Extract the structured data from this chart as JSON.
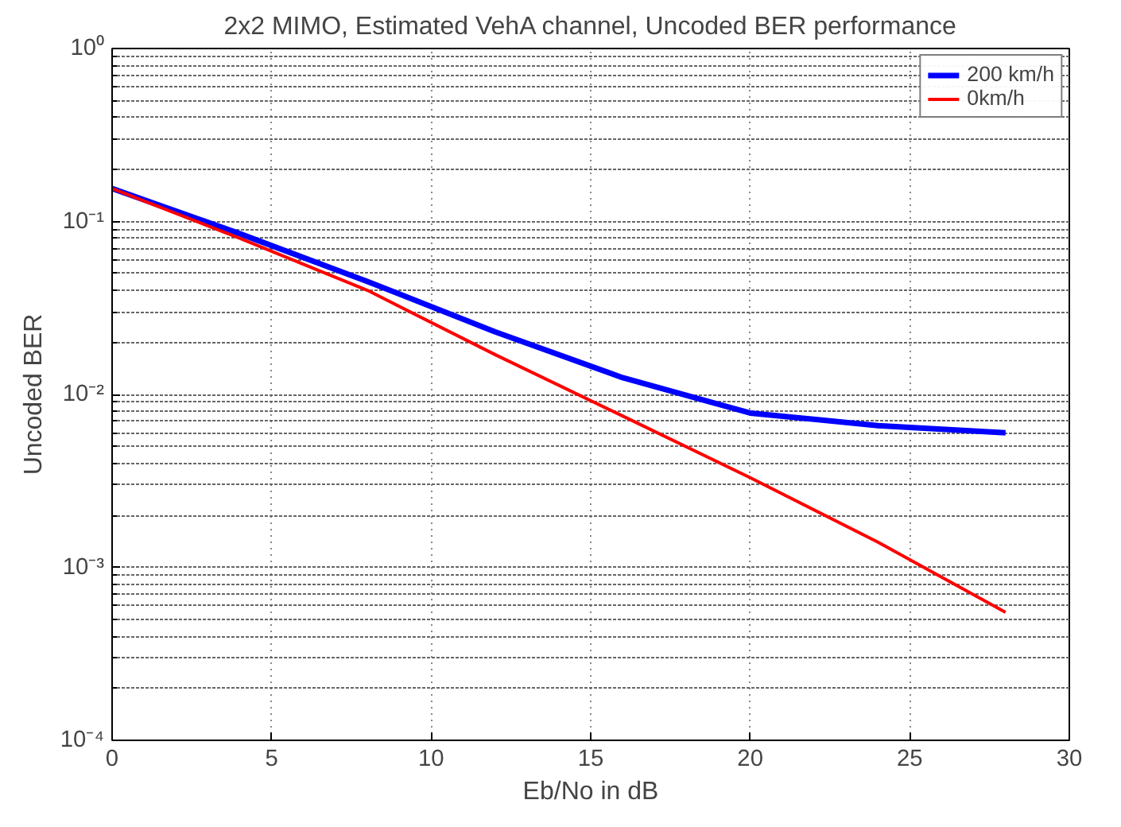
{
  "chart_data": {
    "type": "line",
    "title": "2x2 MIMO, Estimated VehA channel, Uncoded BER performance",
    "xlabel": "Eb/No in dB",
    "ylabel": "Uncoded BER",
    "x": [
      0,
      4,
      8,
      12,
      16,
      20,
      24,
      28
    ],
    "series": [
      {
        "name": "200 km/h",
        "color": "#0000ff",
        "values": [
          0.155,
          0.085,
          0.045,
          0.023,
          0.0125,
          0.0078,
          0.0066,
          0.006
        ]
      },
      {
        "name": "0km/h",
        "color": "#ff0000",
        "values": [
          0.155,
          0.08,
          0.04,
          0.017,
          0.0075,
          0.0033,
          0.0014,
          0.00055
        ]
      }
    ],
    "xlim": [
      0,
      30
    ],
    "xticks": [
      0,
      5,
      10,
      15,
      20,
      25,
      30
    ],
    "ylim": [
      0.0001,
      1
    ],
    "yticks": [
      {
        "value": 0.0001,
        "label": "10⁻⁴"
      },
      {
        "value": 0.001,
        "label": "10⁻³"
      },
      {
        "value": 0.01,
        "label": "10⁻²"
      },
      {
        "value": 0.1,
        "label": "10⁻¹"
      },
      {
        "value": 1,
        "label": "10⁰"
      }
    ],
    "log": "y",
    "grid": true,
    "legend": "top right",
    "line_style": "solid",
    "marker": "none"
  }
}
